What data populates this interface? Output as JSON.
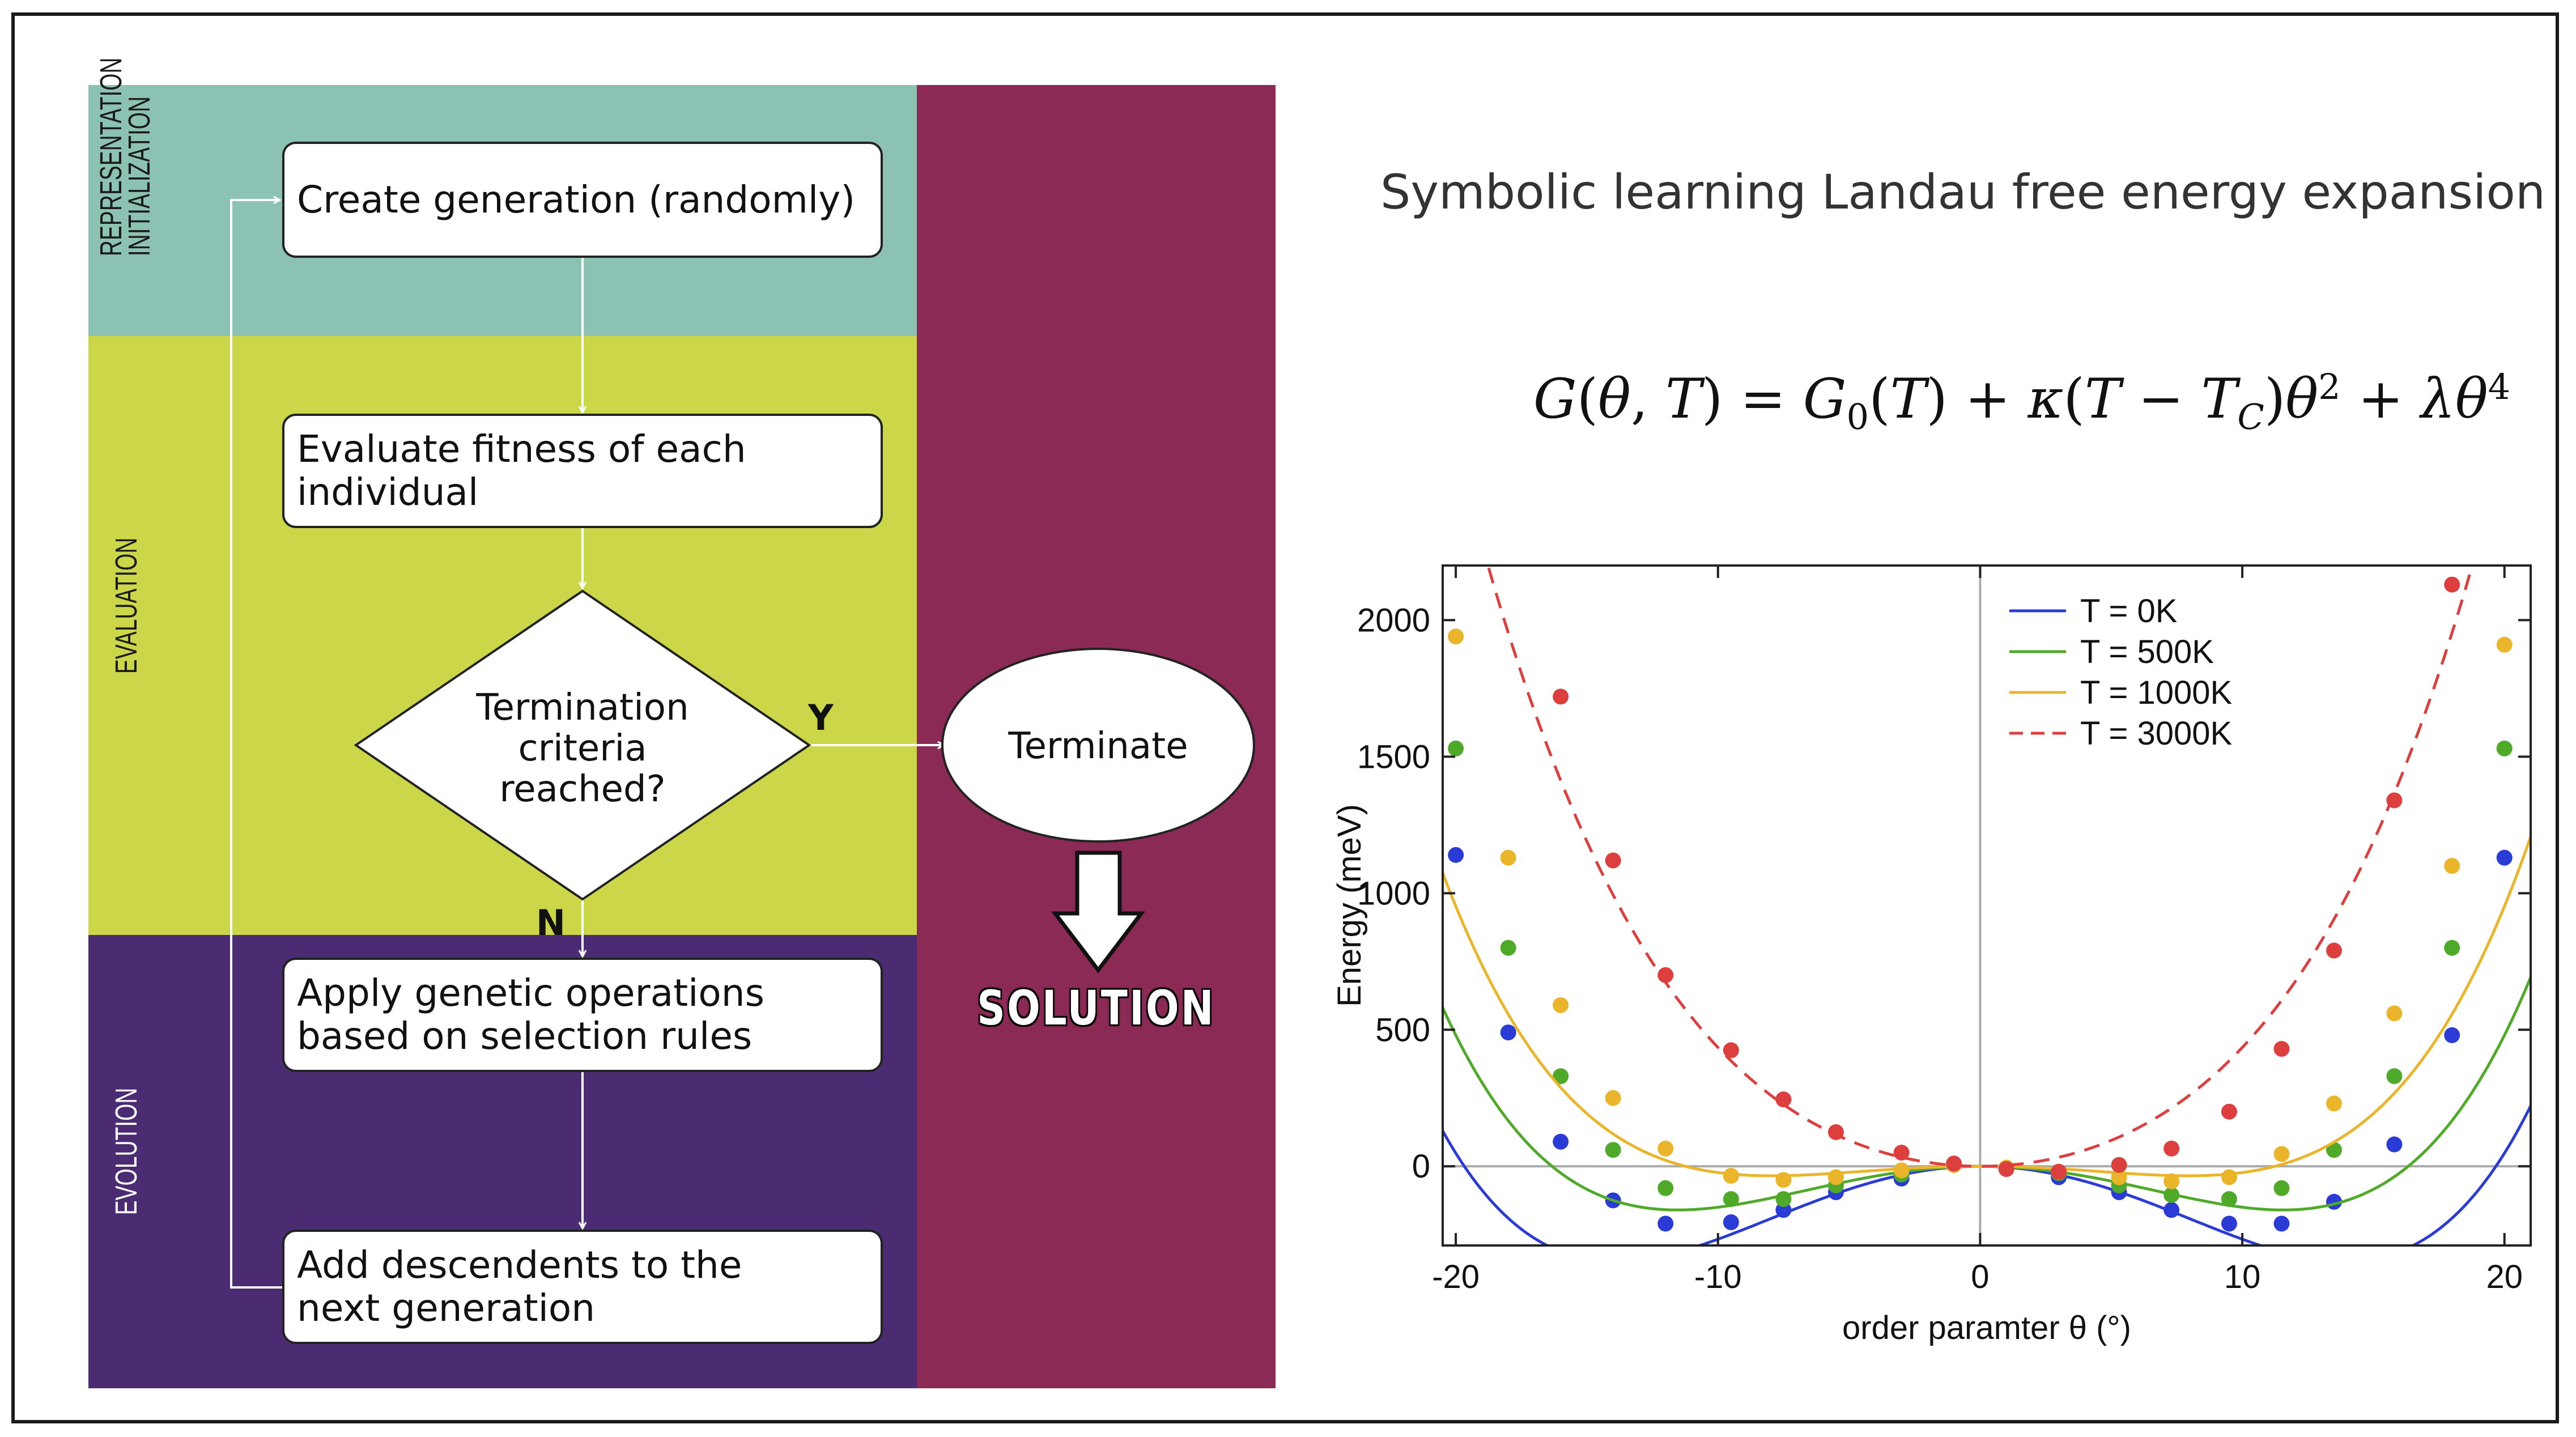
{
  "flowchart": {
    "bands": {
      "representation": "REPRESENTATION",
      "initialization": "INITIALIZATION",
      "evaluation": "EVALUATION",
      "evolution": "EVOLUTION"
    },
    "steps": {
      "create": "Create generation (randomly)",
      "evaluate": "Evaluate fitness of each individual",
      "decision": "Termination\ncriteria\nreached?",
      "apply": "Apply genetic operations\nbased on selection rules",
      "add": "Add descendents to the\nnext generation",
      "terminate": "Terminate"
    },
    "branch_yes": "Y",
    "branch_no": "N",
    "solution": "SOLUTION",
    "colors": {
      "representation": "#8cc2b4",
      "evaluation": "#cbd749",
      "evolution": "#4b2c73",
      "solution": "#8c2a56"
    }
  },
  "title": "Symbolic learning Landau free energy expansion",
  "equation": "G(θ,T) = G₀(T) + κ(T − T_C)θ² + λθ⁴",
  "chart_data": {
    "type": "scatter",
    "xlabel": "order paramter θ (°)",
    "ylabel": "Energy (meV)",
    "xlim": [
      -20.5,
      21
    ],
    "ylim": [
      -290,
      2200
    ],
    "xticks": [
      -20,
      -10,
      0,
      10,
      20
    ],
    "yticks": [
      0,
      500,
      1000,
      1500,
      2000
    ],
    "legend_position": "top-right",
    "grid": false,
    "series": [
      {
        "name": "T = 0K",
        "color": "#2b3bd6",
        "line": "solid",
        "curve": {
          "a": -3.6,
          "b": 0.0093
        },
        "points": [
          [
            -20,
            1140
          ],
          [
            -18,
            490
          ],
          [
            -16,
            90
          ],
          [
            -14,
            -125
          ],
          [
            -12,
            -210
          ],
          [
            -9.5,
            -205
          ],
          [
            -7.5,
            -160
          ],
          [
            -5.5,
            -95
          ],
          [
            -3,
            -45
          ],
          [
            -1,
            5
          ],
          [
            1,
            -10
          ],
          [
            3,
            -40
          ],
          [
            5.3,
            -95
          ],
          [
            7.3,
            -160
          ],
          [
            9.5,
            -210
          ],
          [
            11.5,
            -210
          ],
          [
            13.5,
            -130
          ],
          [
            15.8,
            80
          ],
          [
            18,
            480
          ],
          [
            20,
            1130
          ]
        ]
      },
      {
        "name": "T = 500K",
        "color": "#4faa2a",
        "line": "solid",
        "curve": {
          "a": -2.4,
          "b": 0.009
        },
        "points": [
          [
            -20,
            1530
          ],
          [
            -18,
            800
          ],
          [
            -16,
            330
          ],
          [
            -14,
            60
          ],
          [
            -12,
            -80
          ],
          [
            -9.5,
            -120
          ],
          [
            -7.5,
            -120
          ],
          [
            -5.5,
            -70
          ],
          [
            -3,
            -30
          ],
          [
            -1,
            5
          ],
          [
            1,
            -5
          ],
          [
            3,
            -25
          ],
          [
            5.3,
            -70
          ],
          [
            7.3,
            -105
          ],
          [
            9.5,
            -120
          ],
          [
            11.5,
            -80
          ],
          [
            13.5,
            60
          ],
          [
            15.8,
            330
          ],
          [
            18,
            800
          ],
          [
            20,
            1530
          ]
        ]
      },
      {
        "name": "T = 1000K",
        "color": "#eab52a",
        "line": "solid",
        "curve": {
          "a": -1.1,
          "b": 0.0087
        },
        "points": [
          [
            -20,
            1940
          ],
          [
            -18,
            1130
          ],
          [
            -16,
            590
          ],
          [
            -14,
            250
          ],
          [
            -12,
            65
          ],
          [
            -9.5,
            -35
          ],
          [
            -7.5,
            -50
          ],
          [
            -5.5,
            -40
          ],
          [
            -3,
            -15
          ],
          [
            -1,
            5
          ],
          [
            1,
            -5
          ],
          [
            3,
            -20
          ],
          [
            5.3,
            -40
          ],
          [
            7.3,
            -55
          ],
          [
            9.5,
            -40
          ],
          [
            11.5,
            45
          ],
          [
            13.5,
            230
          ],
          [
            15.8,
            560
          ],
          [
            18,
            1100
          ],
          [
            20,
            1910
          ]
        ]
      },
      {
        "name": "T = 3000K",
        "color": "#dd3f3f",
        "line": "dashed",
        "curve": {
          "a": 3.6,
          "b": 0.0075
        },
        "points": [
          [
            -16,
            1720
          ],
          [
            -14,
            1120
          ],
          [
            -12,
            700
          ],
          [
            -9.5,
            425
          ],
          [
            -7.5,
            245
          ],
          [
            -5.5,
            125
          ],
          [
            -3,
            50
          ],
          [
            -1,
            10
          ],
          [
            1,
            -10
          ],
          [
            3,
            -20
          ],
          [
            5.3,
            5
          ],
          [
            7.3,
            65
          ],
          [
            9.5,
            200
          ],
          [
            11.5,
            430
          ],
          [
            13.5,
            790
          ],
          [
            15.8,
            1340
          ],
          [
            18,
            2130
          ]
        ]
      }
    ]
  }
}
